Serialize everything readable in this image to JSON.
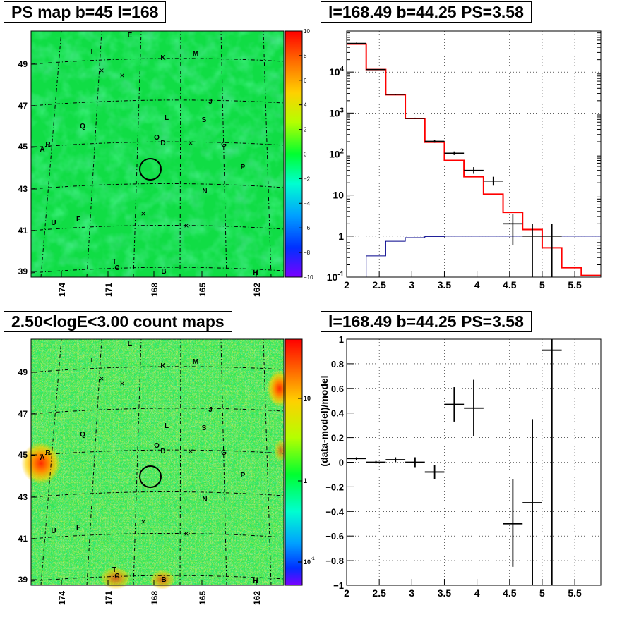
{
  "panels": {
    "top_left_title": "PS map b=45 l=168",
    "top_right_title": "l=168.49 b=44.25 PS=3.58",
    "bottom_left_title": "2.50<logE<3.00 count maps",
    "bottom_right_title": "l=168.49 b=44.25 PS=3.58"
  },
  "chart_data": [
    {
      "type": "heatmap",
      "title": "PS map b=45 l=168",
      "x_ticks": [
        "174",
        "171",
        "168",
        "165",
        "162"
      ],
      "y_ticks": [
        "49",
        "47",
        "45",
        "43",
        "41",
        "39"
      ],
      "colorbar": {
        "ticks": [
          "10",
          "8",
          "6",
          "4",
          "2",
          "0",
          "−2",
          "−4",
          "−6",
          "−8",
          "−10"
        ],
        "range": [
          -10,
          10
        ]
      },
      "source_labels": [
        "E",
        "I",
        "K",
        "M",
        "J",
        "L",
        "S",
        "Q",
        "O",
        "D",
        "A",
        "R",
        "G",
        "P",
        "N",
        "U",
        "F",
        "T",
        "C",
        "B",
        "H"
      ],
      "markers": [
        "×",
        "×",
        "×",
        "×",
        "×"
      ]
    },
    {
      "type": "line",
      "title": "l=168.49 b=44.25 PS=3.58",
      "xlim": [
        2.0,
        5.9
      ],
      "ylim": [
        0.1,
        100000
      ],
      "yscale": "log",
      "x_ticks": [
        "2",
        "2.5",
        "3",
        "3.5",
        "4",
        "4.5",
        "5",
        "5.5"
      ],
      "y_ticks": [
        "10^{-1}",
        "1",
        "10",
        "10^{2}",
        "10^{3}",
        "10^{4}"
      ],
      "grid": true,
      "series": [
        {
          "color": "#ff0000",
          "style": "step",
          "edges": [
            2.0,
            2.3,
            2.6,
            2.9,
            3.2,
            3.5,
            3.8,
            4.1,
            4.4,
            4.7,
            5.0,
            5.3,
            5.6,
            5.9
          ],
          "values": [
            48000,
            11500,
            2800,
            740,
            195,
            70,
            28,
            10.5,
            3.8,
            1.45,
            0.52,
            0.17,
            0.11
          ]
        },
        {
          "color": "#00008b",
          "style": "step",
          "edges": [
            2.0,
            2.3,
            2.6,
            2.9,
            3.2,
            3.5,
            3.8,
            4.1,
            4.4,
            4.7,
            5.0,
            5.3,
            5.6,
            5.9
          ],
          "values": [
            0.1,
            0.33,
            0.75,
            0.92,
            0.98,
            1.0,
            1.0,
            1.0,
            1.0,
            1.0,
            1.0,
            1.0,
            1.0
          ]
        },
        {
          "color": "#000000",
          "style": "errorbar",
          "points": [
            {
              "x": 2.15,
              "y": 50000,
              "xerr": 0.15,
              "ylo": 48000,
              "yhi": 52000
            },
            {
              "x": 2.45,
              "y": 11500,
              "xerr": 0.15,
              "ylo": 11200,
              "yhi": 11800
            },
            {
              "x": 2.75,
              "y": 2850,
              "xerr": 0.15,
              "ylo": 2750,
              "yhi": 2950
            },
            {
              "x": 3.05,
              "y": 745,
              "xerr": 0.15,
              "ylo": 720,
              "yhi": 770
            },
            {
              "x": 3.35,
              "y": 205,
              "xerr": 0.15,
              "ylo": 190,
              "yhi": 220
            },
            {
              "x": 3.65,
              "y": 105,
              "xerr": 0.15,
              "ylo": 95,
              "yhi": 116
            },
            {
              "x": 3.95,
              "y": 40,
              "xerr": 0.15,
              "ylo": 33,
              "yhi": 48
            },
            {
              "x": 4.25,
              "y": 22,
              "xerr": 0.15,
              "ylo": 17,
              "yhi": 28
            },
            {
              "x": 4.55,
              "y": 2.0,
              "xerr": 0.15,
              "ylo": 0.6,
              "yhi": 3.4
            },
            {
              "x": 4.85,
              "y": 1.0,
              "xerr": 0.15,
              "ylo": 0.1,
              "yhi": 2.0
            },
            {
              "x": 5.15,
              "y": 1.0,
              "xerr": 0.15,
              "ylo": 0.1,
              "yhi": 2.0
            }
          ]
        }
      ]
    },
    {
      "type": "heatmap",
      "title": "2.50<logE<3.00 count maps",
      "x_ticks": [
        "174",
        "171",
        "168",
        "165",
        "162"
      ],
      "y_ticks": [
        "49",
        "47",
        "45",
        "43",
        "41",
        "39"
      ],
      "colorbar": {
        "ticks": [
          "10",
          "1",
          "10^{-1}"
        ],
        "scale": "log"
      },
      "source_labels": [
        "E",
        "I",
        "K",
        "M",
        "J",
        "L",
        "S",
        "Q",
        "O",
        "D",
        "A",
        "R",
        "G",
        "P",
        "N",
        "U",
        "F",
        "T",
        "C",
        "B",
        "H"
      ],
      "markers": [
        "×",
        "×",
        "×",
        "×",
        "×"
      ]
    },
    {
      "type": "scatter",
      "title": "l=168.49 b=44.25 PS=3.58",
      "ylabel": "(data-model)/model",
      "xlim": [
        2.0,
        5.9
      ],
      "ylim": [
        -1.0,
        1.0
      ],
      "x_ticks": [
        "2",
        "2.5",
        "3",
        "3.5",
        "4",
        "4.5",
        "5",
        "5.5"
      ],
      "y_ticks": [
        "1",
        "0.8",
        "0.6",
        "0.4",
        "0.2",
        "0",
        "−0.2",
        "−0.4",
        "−0.6",
        "−0.8",
        "−1"
      ],
      "grid": true,
      "points": [
        {
          "x": 2.15,
          "y": 0.03,
          "xerr": 0.15,
          "ylo": 0.02,
          "yhi": 0.04
        },
        {
          "x": 2.45,
          "y": 0.0,
          "xerr": 0.15,
          "ylo": -0.01,
          "yhi": 0.01
        },
        {
          "x": 2.75,
          "y": 0.02,
          "xerr": 0.15,
          "ylo": 0.0,
          "yhi": 0.04
        },
        {
          "x": 3.05,
          "y": 0.0,
          "xerr": 0.15,
          "ylo": -0.04,
          "yhi": 0.04
        },
        {
          "x": 3.35,
          "y": -0.08,
          "xerr": 0.15,
          "ylo": -0.14,
          "yhi": -0.02
        },
        {
          "x": 3.65,
          "y": 0.47,
          "xerr": 0.15,
          "ylo": 0.33,
          "yhi": 0.61
        },
        {
          "x": 3.95,
          "y": 0.44,
          "xerr": 0.15,
          "ylo": 0.21,
          "yhi": 0.67
        },
        {
          "x": 4.55,
          "y": -0.5,
          "xerr": 0.15,
          "ylo": -0.85,
          "yhi": -0.14
        },
        {
          "x": 4.85,
          "y": -0.33,
          "xerr": 0.15,
          "ylo": -1.0,
          "yhi": 0.35
        },
        {
          "x": 5.15,
          "y": 0.91,
          "xerr": 0.15,
          "ylo": -1.0,
          "yhi": 1.0
        }
      ]
    }
  ]
}
